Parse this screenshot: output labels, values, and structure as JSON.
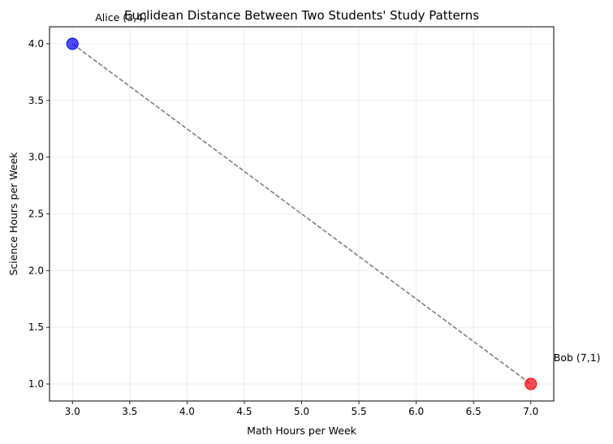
{
  "chart_data": {
    "type": "scatter",
    "title": "Euclidean Distance Between Two Students' Study Patterns",
    "xlabel": "Math Hours per Week",
    "ylabel": "Science Hours per Week",
    "xlim": [
      2.8,
      7.2
    ],
    "ylim": [
      0.85,
      4.15
    ],
    "xticks": [
      "3.0",
      "3.5",
      "4.0",
      "4.5",
      "5.0",
      "5.5",
      "6.0",
      "6.5",
      "7.0"
    ],
    "yticks": [
      "1.0",
      "1.5",
      "2.0",
      "2.5",
      "3.0",
      "3.5",
      "4.0"
    ],
    "grid": true,
    "points": [
      {
        "x": 3,
        "y": 4,
        "label": "Alice (3,4)",
        "color": "#0000ff"
      },
      {
        "x": 7,
        "y": 1,
        "label": "Bob (7,1)",
        "color": "#ff0000"
      }
    ],
    "connector": {
      "style": "dashed",
      "color": "#808080"
    }
  }
}
